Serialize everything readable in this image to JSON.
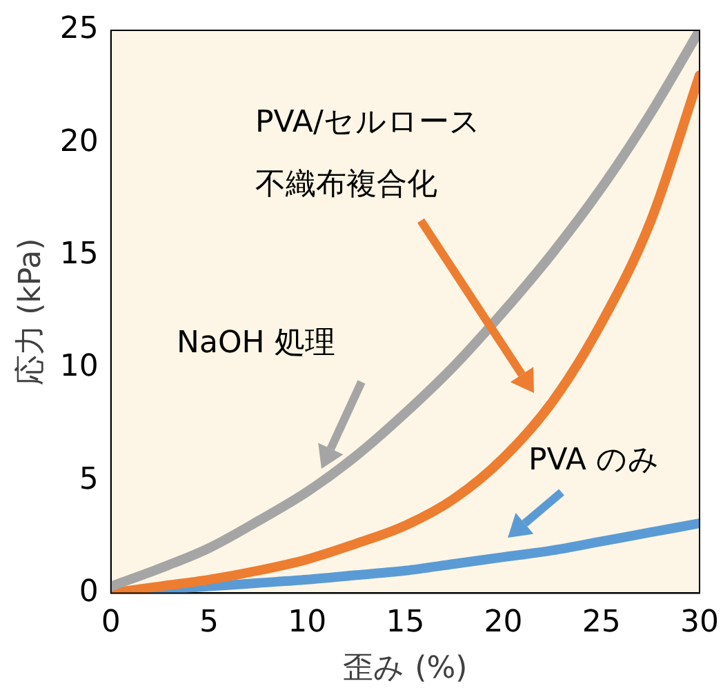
{
  "chart_data": {
    "type": "line",
    "xlabel": "歪み (%)",
    "ylabel": "応力 (kPa)",
    "x": [
      0,
      2.5,
      5,
      7.5,
      10,
      12.5,
      15,
      17.5,
      20,
      22.5,
      25,
      27.5,
      30
    ],
    "series": [
      {
        "color": "#a5a5a5",
        "values": [
          0.3,
          1.1,
          2.0,
          3.2,
          4.5,
          6.1,
          8.0,
          10.1,
          12.5,
          15.1,
          18.0,
          21.3,
          25.0
        ]
      },
      {
        "color": "#ed7d31",
        "values": [
          0.0,
          0.3,
          0.6,
          1.0,
          1.5,
          2.2,
          3.0,
          4.2,
          6.0,
          8.5,
          12.0,
          16.5,
          23.0
        ]
      },
      {
        "color": "#5b9bd5",
        "values": [
          0.0,
          0.15,
          0.3,
          0.45,
          0.6,
          0.8,
          1.0,
          1.3,
          1.6,
          1.9,
          2.3,
          2.7,
          3.1
        ]
      }
    ],
    "xlim": [
      0,
      30
    ],
    "xticks": [
      0,
      5,
      10,
      15,
      20,
      25,
      30
    ],
    "ylim": [
      0,
      25
    ],
    "yticks": [
      0,
      5,
      10,
      15,
      20,
      25
    ],
    "grid": false,
    "legend": false,
    "marker": "none",
    "line_style": "solid",
    "annotations": [
      "NaOH 処理",
      "PVA/セルロース",
      "不織布複合化",
      "PVA のみ"
    ]
  }
}
